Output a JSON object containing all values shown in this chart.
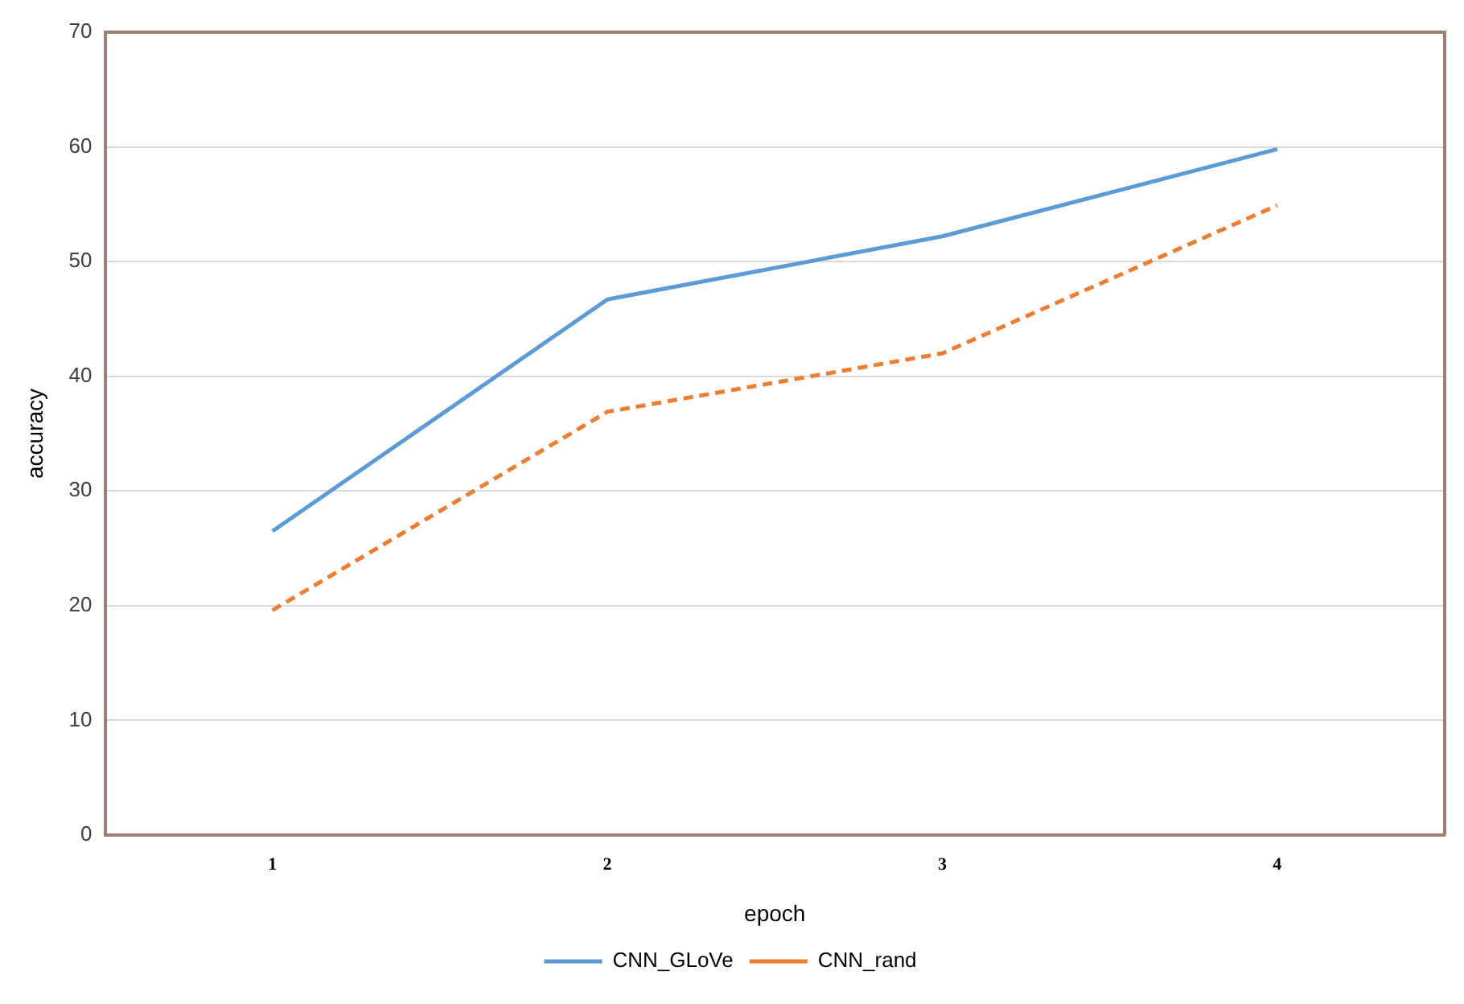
{
  "chart_data": {
    "type": "line",
    "xlabel": "epoch",
    "ylabel": "accuracy",
    "categories": [
      "1",
      "2",
      "3",
      "4"
    ],
    "series": [
      {
        "name": "CNN_GLoVe",
        "color": "#5b9bd5",
        "line_style": "solid",
        "values": [
          26.5,
          46.7,
          52.2,
          59.8
        ]
      },
      {
        "name": "CNN_rand",
        "color": "#ed7d31",
        "line_style": "dashed",
        "values": [
          19.6,
          36.9,
          42.0,
          54.9
        ]
      }
    ],
    "ylim": [
      0,
      70
    ],
    "yticks": [
      0,
      10,
      20,
      30,
      40,
      50,
      60,
      70
    ],
    "grid": "y",
    "legend": "bottom",
    "marker": "none"
  }
}
